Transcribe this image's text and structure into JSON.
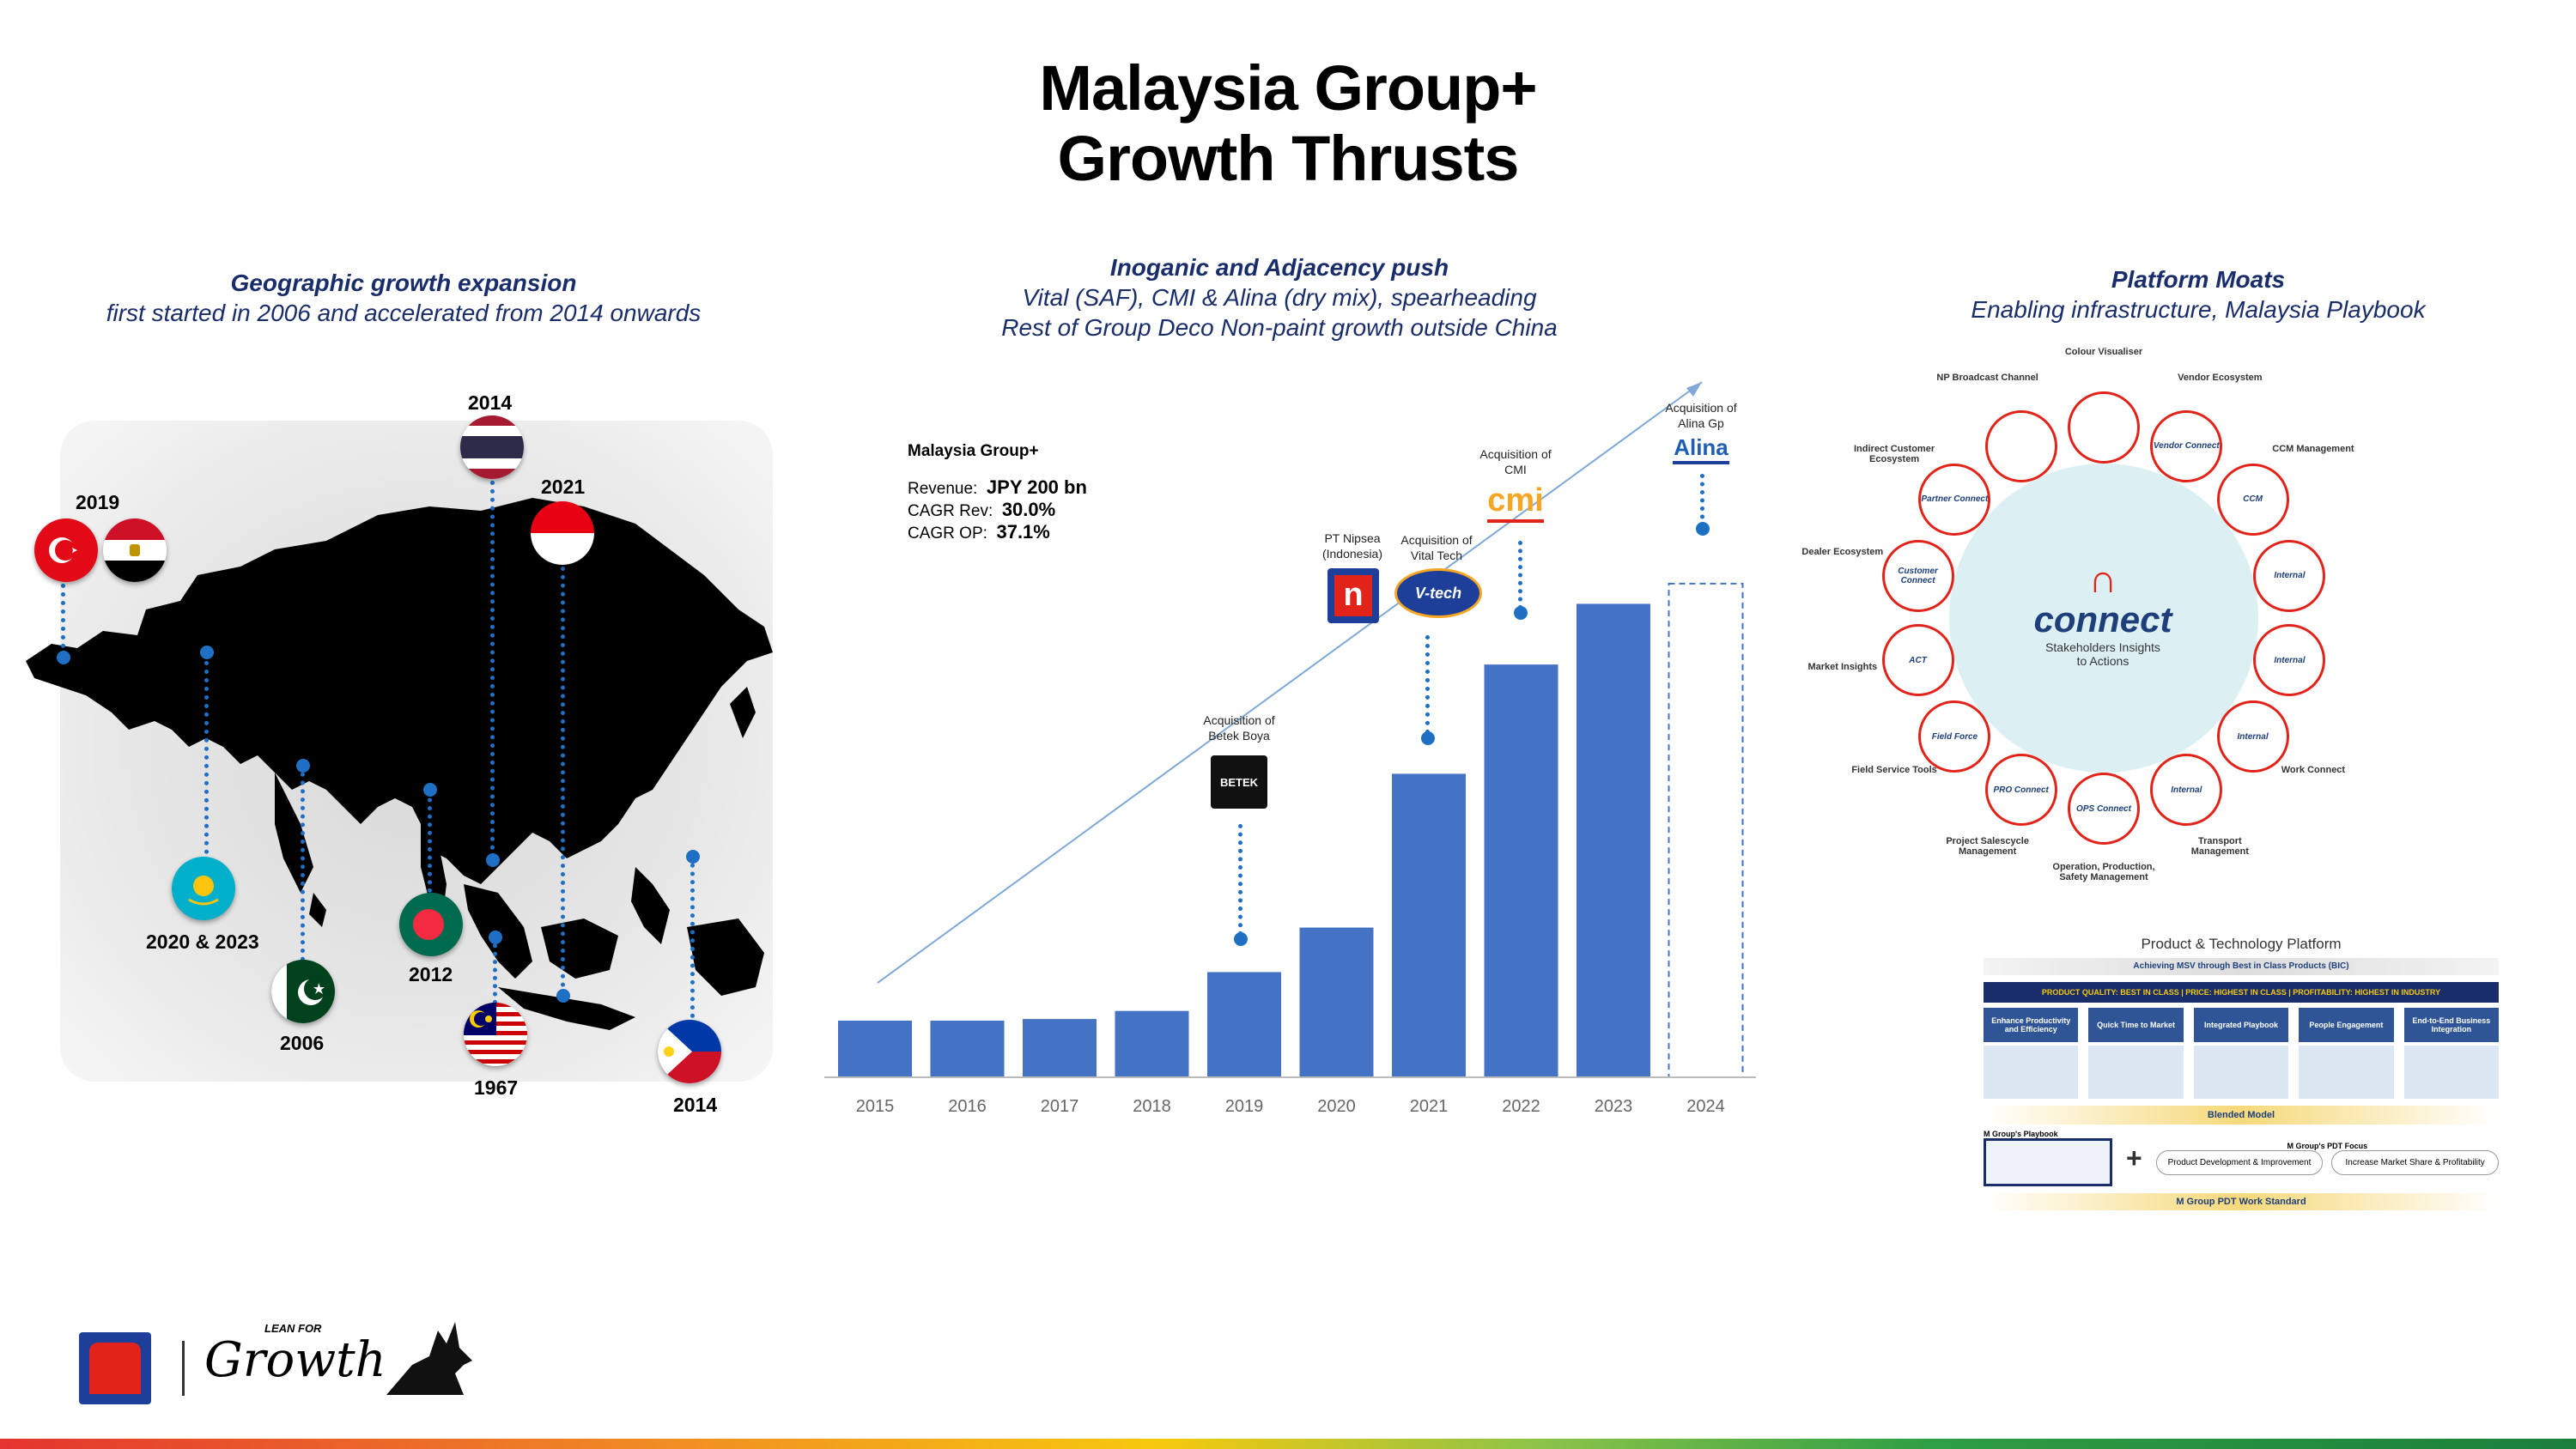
{
  "title": {
    "line1": "Malaysia Group+",
    "line2": "Growth Thrusts"
  },
  "sections": {
    "geo": {
      "heading": "Geographic growth expansion",
      "sub": "first started in 2006 and accelerated from 2014 onwards"
    },
    "inorganic": {
      "heading": "Inoganic and Adjacency push",
      "sub1": "Vital (SAF), CMI & Alina (dry mix), spearheading",
      "sub2": "Rest of Group Deco Non-paint growth outside China"
    },
    "platform": {
      "heading": "Platform Moats",
      "sub": "Enabling infrastructure, Malaysia Playbook"
    }
  },
  "map": {
    "labels": {
      "turkey_egypt": "2019",
      "thailand": "2014",
      "indonesia": "2021",
      "kazakhstan": "2020 & 2023",
      "pakistan": "2006",
      "bangladesh": "2012",
      "malaysia": "1967",
      "philippines": "2014"
    }
  },
  "info": {
    "group": "Malaysia  Group+",
    "revenue_label": "Revenue:",
    "revenue_value": "JPY 200 bn",
    "cagr_rev_label": "CAGR Rev:",
    "cagr_rev_value": "30.0%",
    "cagr_op_label": "CAGR OP:",
    "cagr_op_value": "37.1%"
  },
  "acquisitions": {
    "betek": {
      "line1": "Acquisition of",
      "line2": "Betek Boya",
      "logo": "BETEK"
    },
    "nipsea": {
      "line1": "PT Nipsea",
      "line2": "(Indonesia)",
      "logo": "n"
    },
    "vital": {
      "line1": "Acquisition of",
      "line2": "Vital Tech",
      "logo": "V-tech"
    },
    "cmi": {
      "line1": "Acquisition of",
      "line2": "CMI",
      "logo": "cmi"
    },
    "alina": {
      "line1": "Acquisition of",
      "line2": "Alina Gp",
      "logo": "Alina"
    }
  },
  "chart_data": {
    "type": "bar",
    "categories": [
      "2015",
      "2016",
      "2017",
      "2018",
      "2019",
      "2020",
      "2021",
      "2022",
      "2023",
      "2024"
    ],
    "values": [
      7,
      7,
      7.2,
      8.2,
      13,
      18.5,
      37.5,
      51,
      58.5,
      61
    ],
    "series": [
      {
        "values": [
          7,
          7,
          7.2,
          8.2,
          13,
          18.5,
          37.5,
          51,
          58.5,
          61
        ]
      }
    ],
    "projected": [
      false,
      false,
      false,
      false,
      false,
      false,
      false,
      false,
      false,
      true
    ],
    "ylim": [
      0,
      70
    ],
    "grid": false,
    "colors": {
      "bar": "#4472c4",
      "projected_outline": "#4472c4"
    }
  },
  "connect": {
    "center_brand": "connect",
    "center_sub1": "Stakeholders Insights",
    "center_sub2": "to Actions",
    "nodes": [
      {
        "name": "Colour Visualiser",
        "tag": ""
      },
      {
        "name": "Vendor Ecosystem",
        "tag": "Vendor Connect"
      },
      {
        "name": "CCM Management",
        "tag": "CCM"
      },
      {
        "name": "",
        "tag": "Internal"
      },
      {
        "name": "",
        "tag": "Internal"
      },
      {
        "name": "Work Connect",
        "tag": "Internal"
      },
      {
        "name": "Transport Management",
        "tag": "Internal"
      },
      {
        "name": "Operation, Production, Safety Management",
        "tag": "OPS Connect"
      },
      {
        "name": "Project Salescycle Management",
        "tag": "PRO Connect"
      },
      {
        "name": "Field Service Tools",
        "tag": "Field Force"
      },
      {
        "name": "Market Insights",
        "tag": "ACT"
      },
      {
        "name": "Dealer Ecosystem",
        "tag": "Customer Connect"
      },
      {
        "name": "Indirect Customer Ecosystem",
        "tag": "Partner Connect"
      },
      {
        "name": "NP Broadcast Channel",
        "tag": ""
      }
    ]
  },
  "pdt": {
    "title": "Product & Technology Platform",
    "subtitle": "Achieving MSV through Best in Class Products (BIC)",
    "bar": "PRODUCT QUALITY: BEST IN CLASS  |  PRICE: HIGHEST IN CLASS  |  PROFITABILITY: HIGHEST IN INDUSTRY",
    "cols": [
      "Enhance Productivity and Efficiency",
      "Quick Time to Market",
      "Integrated Playbook",
      "People Engagement",
      "End-to-End Business Integration"
    ],
    "blended": "Blended Model",
    "playbook": "M Group's Playbook",
    "focus": "M Group's PDT Focus",
    "focus1": "Product Development & Improvement",
    "focus2": "Increase Market Share & Profitability",
    "standard": "M Group PDT Work Standard"
  },
  "footer": {
    "brand_small": "LEAN FOR",
    "brand": "Growth"
  }
}
